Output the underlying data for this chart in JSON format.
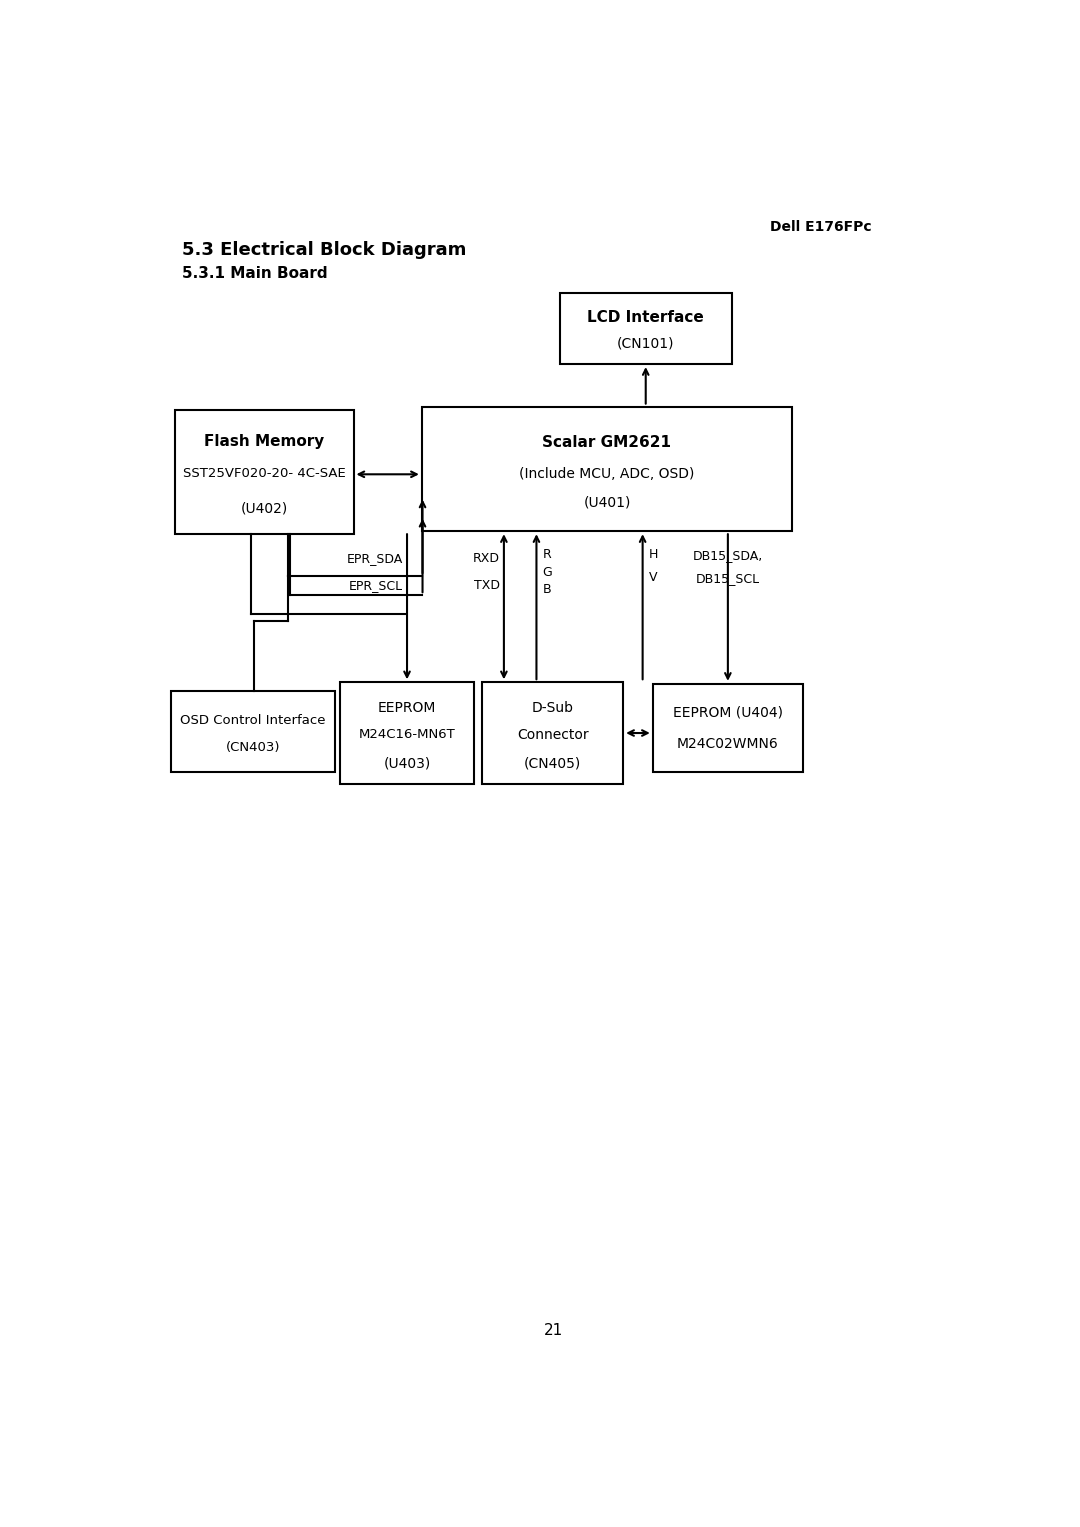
{
  "title_right": "Dell E176FPc",
  "title1": "5.3 Electrical Block Diagram",
  "title2": "5.3.1 Main Board",
  "page_num": "21",
  "bg_color": "#ffffff"
}
